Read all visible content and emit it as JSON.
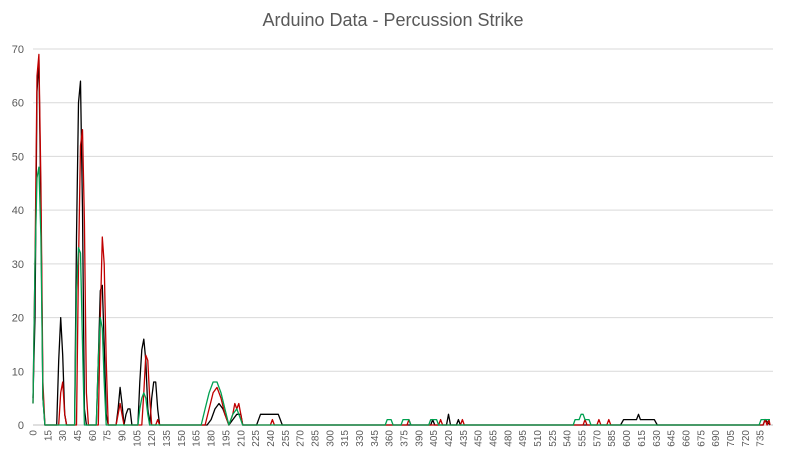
{
  "chart_data": {
    "type": "line",
    "title": "Arduino Data - Percussion Strike",
    "xlabel": "",
    "ylabel": "",
    "ylim": [
      0,
      70
    ],
    "xlim": [
      0,
      745
    ],
    "yticks": [
      0,
      10,
      20,
      30,
      40,
      50,
      60,
      70
    ],
    "xticks": [
      0,
      15,
      30,
      45,
      60,
      75,
      90,
      105,
      120,
      135,
      150,
      165,
      180,
      195,
      210,
      225,
      240,
      255,
      270,
      285,
      300,
      315,
      330,
      345,
      360,
      375,
      390,
      405,
      420,
      435,
      450,
      465,
      480,
      495,
      510,
      525,
      540,
      555,
      570,
      585,
      600,
      615,
      630,
      645,
      660,
      675,
      690,
      705,
      720,
      735
    ],
    "grid": "horizontal",
    "legend": "none",
    "series": [
      {
        "color": "#000000",
        "points": [
          [
            0,
            5
          ],
          [
            2,
            20
          ],
          [
            4,
            62
          ],
          [
            6,
            68
          ],
          [
            8,
            40
          ],
          [
            10,
            5
          ],
          [
            12,
            0
          ],
          [
            24,
            0
          ],
          [
            26,
            12
          ],
          [
            28,
            20
          ],
          [
            30,
            13
          ],
          [
            32,
            2
          ],
          [
            34,
            0
          ],
          [
            42,
            0
          ],
          [
            44,
            35
          ],
          [
            46,
            60
          ],
          [
            48,
            64
          ],
          [
            50,
            40
          ],
          [
            52,
            3
          ],
          [
            54,
            0
          ],
          [
            64,
            0
          ],
          [
            66,
            12
          ],
          [
            68,
            25
          ],
          [
            70,
            26
          ],
          [
            72,
            15
          ],
          [
            74,
            2
          ],
          [
            76,
            0
          ],
          [
            84,
            0
          ],
          [
            86,
            3
          ],
          [
            88,
            7
          ],
          [
            90,
            4
          ],
          [
            92,
            0
          ],
          [
            94,
            2
          ],
          [
            96,
            3
          ],
          [
            98,
            3
          ],
          [
            100,
            0
          ],
          [
            106,
            0
          ],
          [
            108,
            8
          ],
          [
            110,
            14
          ],
          [
            112,
            16
          ],
          [
            114,
            12
          ],
          [
            116,
            3
          ],
          [
            118,
            0
          ],
          [
            120,
            5
          ],
          [
            122,
            8
          ],
          [
            124,
            8
          ],
          [
            126,
            3
          ],
          [
            128,
            0
          ],
          [
            176,
            0
          ],
          [
            180,
            1
          ],
          [
            184,
            3
          ],
          [
            188,
            4
          ],
          [
            192,
            3
          ],
          [
            196,
            1
          ],
          [
            198,
            0
          ],
          [
            202,
            1
          ],
          [
            206,
            2
          ],
          [
            210,
            2
          ],
          [
            212,
            0
          ],
          [
            226,
            0
          ],
          [
            230,
            2
          ],
          [
            248,
            2
          ],
          [
            252,
            0
          ],
          [
            402,
            0
          ],
          [
            404,
            1
          ],
          [
            406,
            0
          ],
          [
            418,
            0
          ],
          [
            420,
            2
          ],
          [
            422,
            0
          ],
          [
            428,
            0
          ],
          [
            430,
            1
          ],
          [
            432,
            0
          ],
          [
            594,
            0
          ],
          [
            597,
            1
          ],
          [
            610,
            1
          ],
          [
            612,
            2
          ],
          [
            614,
            1
          ],
          [
            628,
            1
          ],
          [
            631,
            0
          ],
          [
            738,
            0
          ],
          [
            740,
            1
          ],
          [
            745,
            0
          ]
        ]
      },
      {
        "color": "#c00000",
        "points": [
          [
            0,
            4
          ],
          [
            2,
            30
          ],
          [
            4,
            65
          ],
          [
            6,
            69
          ],
          [
            8,
            45
          ],
          [
            10,
            8
          ],
          [
            12,
            0
          ],
          [
            26,
            0
          ],
          [
            28,
            6
          ],
          [
            30,
            8
          ],
          [
            32,
            2
          ],
          [
            34,
            0
          ],
          [
            44,
            0
          ],
          [
            46,
            30
          ],
          [
            48,
            52
          ],
          [
            50,
            55
          ],
          [
            52,
            38
          ],
          [
            54,
            6
          ],
          [
            56,
            0
          ],
          [
            66,
            0
          ],
          [
            68,
            20
          ],
          [
            70,
            35
          ],
          [
            72,
            30
          ],
          [
            74,
            12
          ],
          [
            76,
            0
          ],
          [
            84,
            0
          ],
          [
            86,
            2
          ],
          [
            88,
            4
          ],
          [
            90,
            2
          ],
          [
            92,
            0
          ],
          [
            110,
            0
          ],
          [
            112,
            6
          ],
          [
            114,
            13
          ],
          [
            116,
            12
          ],
          [
            118,
            5
          ],
          [
            120,
            0
          ],
          [
            124,
            0
          ],
          [
            126,
            1
          ],
          [
            128,
            0
          ],
          [
            174,
            0
          ],
          [
            178,
            3
          ],
          [
            182,
            6
          ],
          [
            186,
            7
          ],
          [
            190,
            5
          ],
          [
            194,
            2
          ],
          [
            198,
            0
          ],
          [
            202,
            2
          ],
          [
            204,
            4
          ],
          [
            206,
            3
          ],
          [
            208,
            4
          ],
          [
            210,
            2
          ],
          [
            212,
            0
          ],
          [
            240,
            0
          ],
          [
            242,
            1
          ],
          [
            244,
            0
          ],
          [
            378,
            0
          ],
          [
            380,
            1
          ],
          [
            382,
            0
          ],
          [
            410,
            0
          ],
          [
            412,
            1
          ],
          [
            414,
            0
          ],
          [
            432,
            0
          ],
          [
            434,
            1
          ],
          [
            436,
            0
          ],
          [
            556,
            0
          ],
          [
            558,
            1
          ],
          [
            560,
            0
          ],
          [
            570,
            0
          ],
          [
            572,
            1
          ],
          [
            574,
            0
          ],
          [
            580,
            0
          ],
          [
            582,
            1
          ],
          [
            584,
            0
          ],
          [
            738,
            0
          ],
          [
            740,
            1
          ],
          [
            742,
            0
          ],
          [
            744,
            1
          ],
          [
            745,
            0
          ]
        ]
      },
      {
        "color": "#00a050",
        "points": [
          [
            0,
            4
          ],
          [
            2,
            30
          ],
          [
            4,
            46
          ],
          [
            6,
            48
          ],
          [
            8,
            35
          ],
          [
            10,
            5
          ],
          [
            12,
            0
          ],
          [
            42,
            0
          ],
          [
            44,
            25
          ],
          [
            46,
            33
          ],
          [
            48,
            32
          ],
          [
            50,
            15
          ],
          [
            52,
            0
          ],
          [
            64,
            0
          ],
          [
            66,
            12
          ],
          [
            68,
            20
          ],
          [
            70,
            18
          ],
          [
            72,
            8
          ],
          [
            74,
            0
          ],
          [
            106,
            0
          ],
          [
            108,
            3
          ],
          [
            110,
            5
          ],
          [
            112,
            6
          ],
          [
            114,
            5
          ],
          [
            116,
            2
          ],
          [
            118,
            0
          ],
          [
            170,
            0
          ],
          [
            174,
            3
          ],
          [
            178,
            6
          ],
          [
            182,
            8
          ],
          [
            186,
            8
          ],
          [
            190,
            6
          ],
          [
            194,
            3
          ],
          [
            198,
            0
          ],
          [
            202,
            2
          ],
          [
            206,
            3
          ],
          [
            210,
            1
          ],
          [
            212,
            0
          ],
          [
            356,
            0
          ],
          [
            358,
            1
          ],
          [
            362,
            1
          ],
          [
            364,
            0
          ],
          [
            372,
            0
          ],
          [
            374,
            1
          ],
          [
            380,
            1
          ],
          [
            382,
            0
          ],
          [
            400,
            0
          ],
          [
            402,
            1
          ],
          [
            408,
            1
          ],
          [
            410,
            0
          ],
          [
            546,
            0
          ],
          [
            548,
            1
          ],
          [
            552,
            1
          ],
          [
            554,
            2
          ],
          [
            556,
            2
          ],
          [
            558,
            1
          ],
          [
            562,
            1
          ],
          [
            564,
            0
          ],
          [
            734,
            0
          ],
          [
            736,
            1
          ],
          [
            745,
            1
          ]
        ]
      }
    ]
  }
}
